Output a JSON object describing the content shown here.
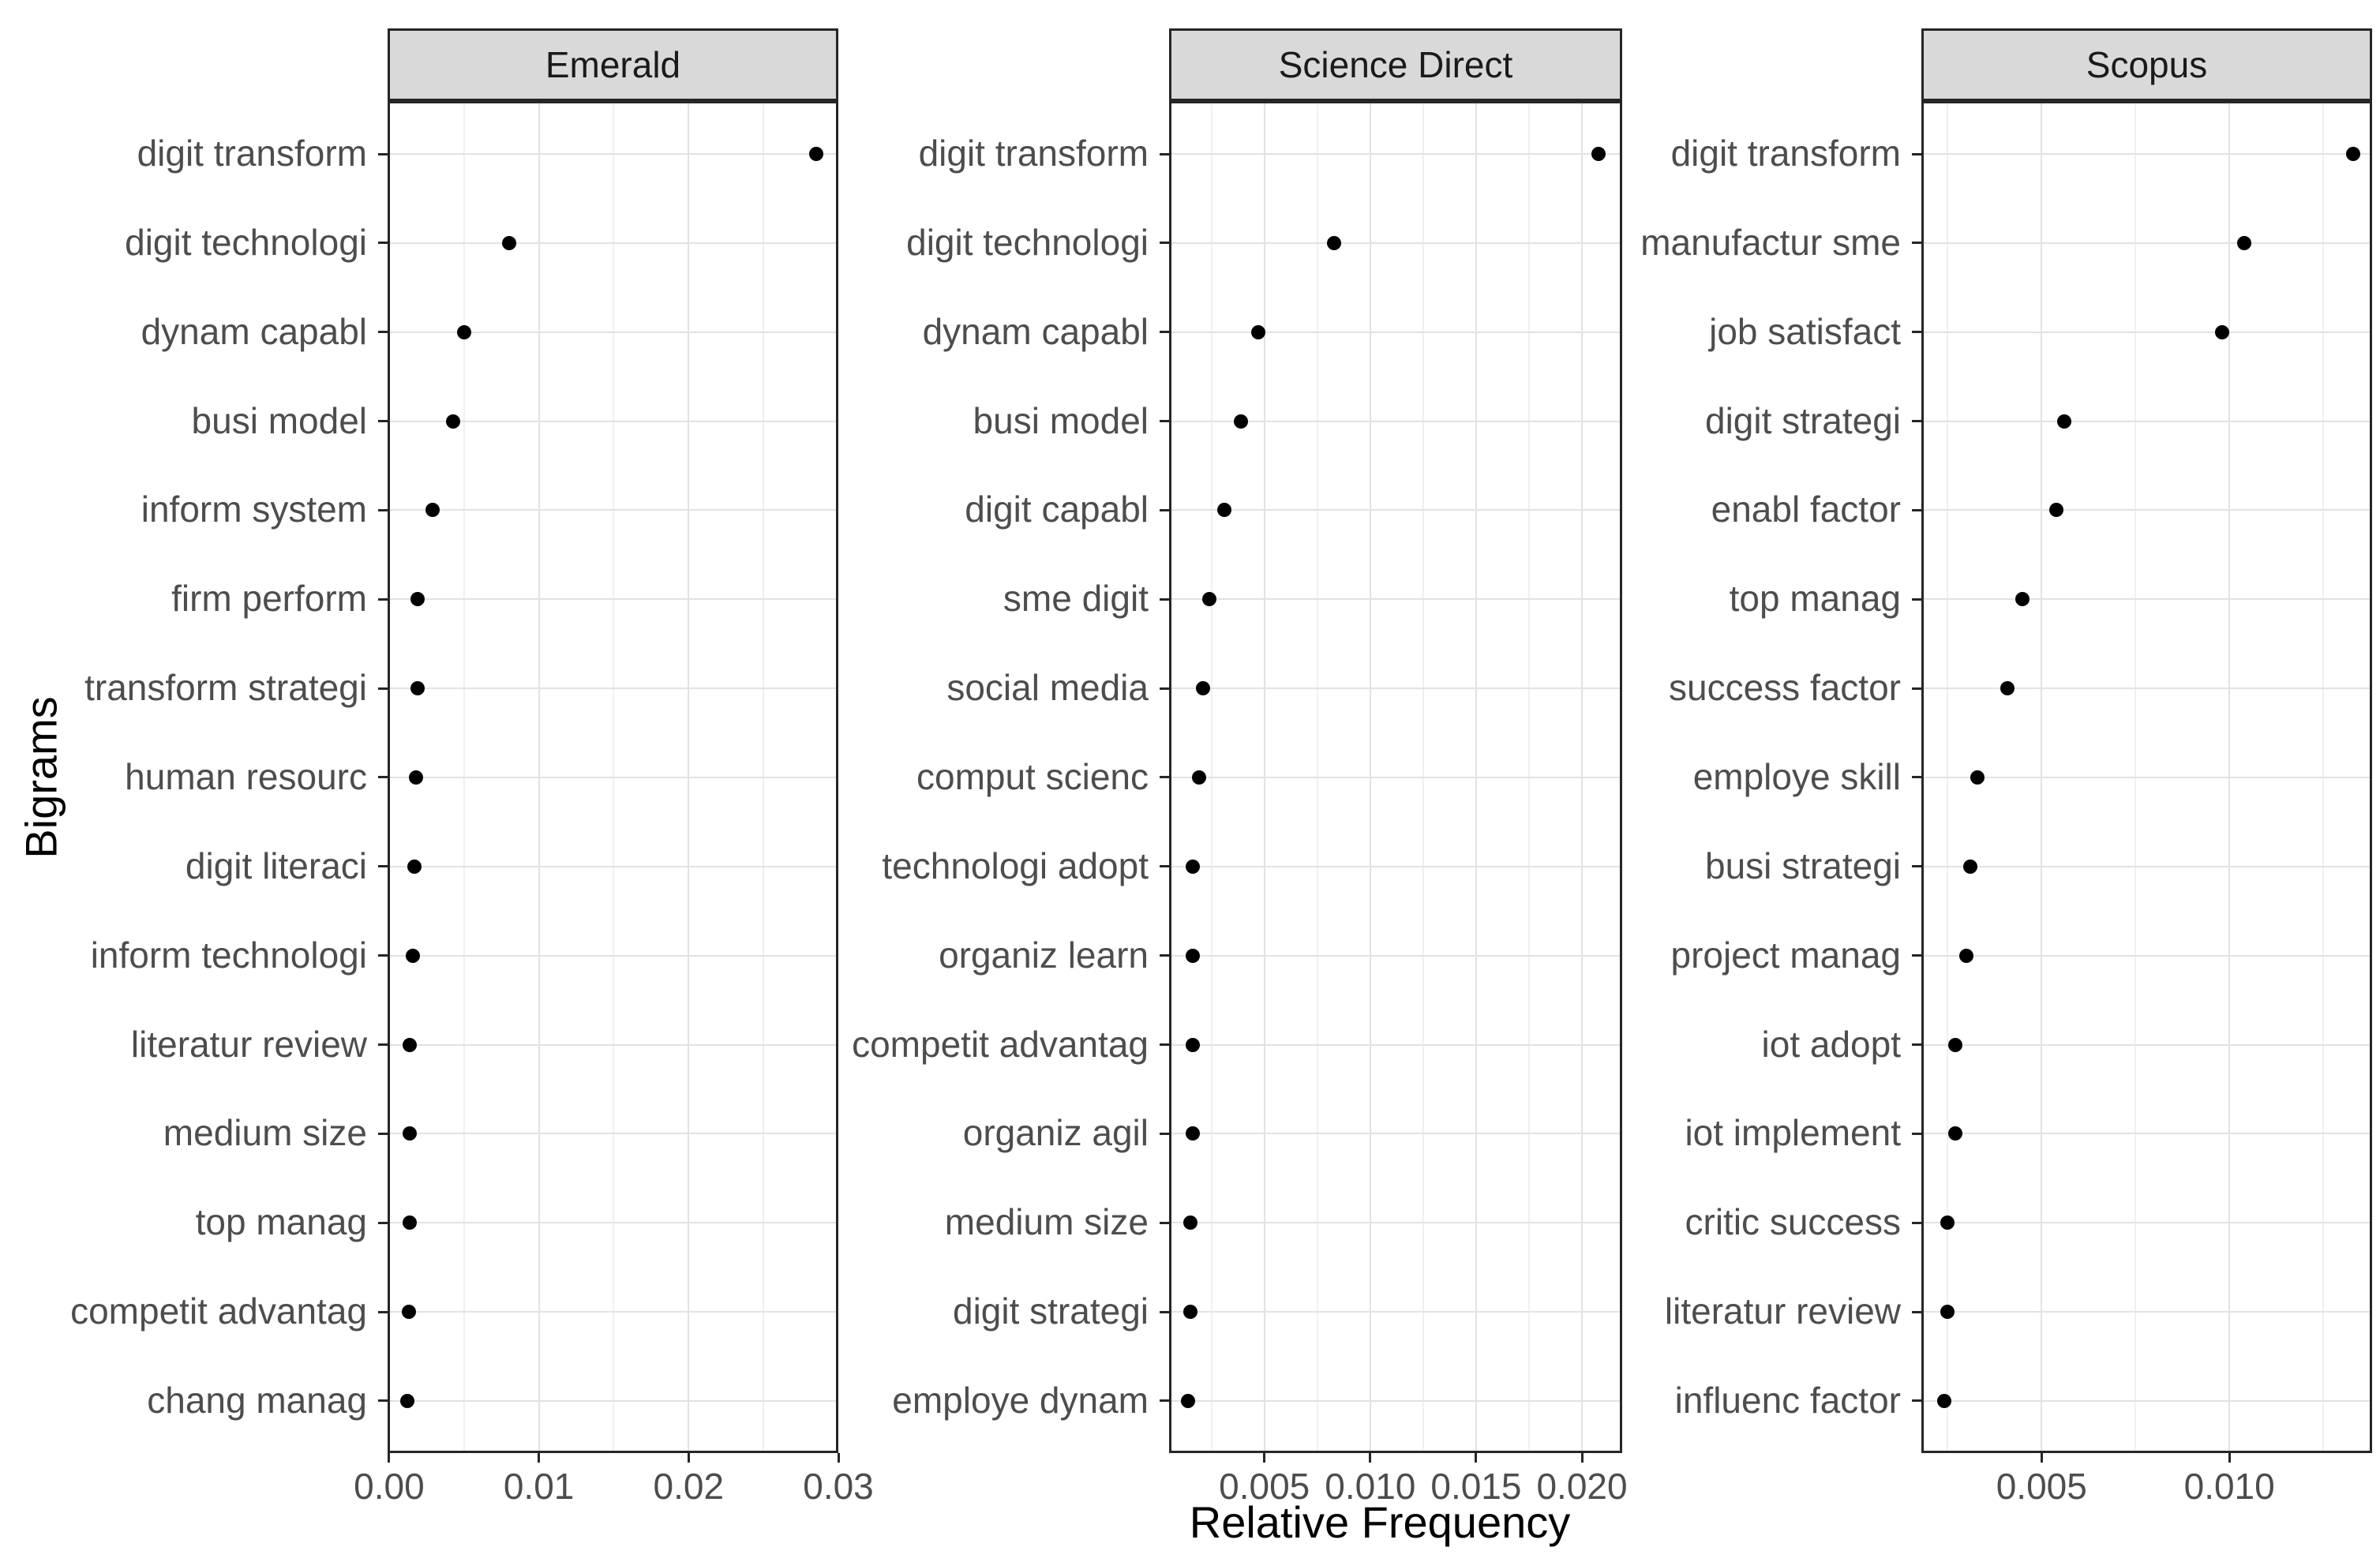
{
  "chart_data": {
    "type": "scatter",
    "subtype": "cleveland-dot-plot",
    "title": "",
    "xlabel": "Relative Frequency",
    "ylabel": "Bigrams",
    "grid": true,
    "legend": false,
    "point_color": "#000000",
    "strip_background": "#d9d9d9",
    "facets": [
      {
        "title": "Emerald",
        "xlim": [
          -0.0001,
          0.03
        ],
        "x_ticks": [
          {
            "label": "0.00",
            "value": 0.0
          },
          {
            "label": "0.01",
            "value": 0.01
          },
          {
            "label": "0.02",
            "value": 0.02
          },
          {
            "label": "0.03",
            "value": 0.03
          }
        ],
        "x_minor_gridlines": [
          0.005,
          0.015,
          0.025
        ],
        "categories": [
          "digit transform",
          "digit technologi",
          "dynam capabl",
          "busi model",
          "inform system",
          "firm perform",
          "transform strategi",
          "human resourc",
          "digit literaci",
          "inform technologi",
          "literatur review",
          "medium size",
          "top manag",
          "competit advantag",
          "chang manag"
        ],
        "values": [
          0.0285,
          0.008,
          0.005,
          0.0043,
          0.0029,
          0.0019,
          0.0019,
          0.0018,
          0.0017,
          0.0016,
          0.0014,
          0.0014,
          0.0014,
          0.0013,
          0.0012
        ]
      },
      {
        "title": "Science Direct",
        "xlim": [
          0.0005,
          0.0219
        ],
        "x_ticks": [
          {
            "label": "0.005",
            "value": 0.005
          },
          {
            "label": "0.010",
            "value": 0.01
          },
          {
            "label": "0.015",
            "value": 0.015
          },
          {
            "label": "0.020",
            "value": 0.02
          }
        ],
        "x_minor_gridlines": [
          0.0025,
          0.0075,
          0.0125,
          0.0175
        ],
        "categories": [
          "digit transform",
          "digit technologi",
          "dynam capabl",
          "busi model",
          "digit capabl",
          "sme digit",
          "social media",
          "comput scienc",
          "technologi adopt",
          "organiz learn",
          "competit advantag",
          "organiz agil",
          "medium size",
          "digit strategi",
          "employe dynam"
        ],
        "values": [
          0.0208,
          0.0083,
          0.0047,
          0.0039,
          0.0031,
          0.0024,
          0.0021,
          0.0019,
          0.0016,
          0.0016,
          0.0016,
          0.0016,
          0.0015,
          0.0015,
          0.0014
        ]
      },
      {
        "title": "Scopus",
        "xlim": [
          0.0018,
          0.0138
        ],
        "x_ticks": [
          {
            "label": "0.005",
            "value": 0.005
          },
          {
            "label": "0.010",
            "value": 0.01
          }
        ],
        "x_minor_gridlines": [
          0.0025,
          0.0075,
          0.0125
        ],
        "categories": [
          "digit transform",
          "manufactur sme",
          "job satisfact",
          "digit strategi",
          "enabl factor",
          "top manag",
          "success factor",
          "employe skill",
          "busi strategi",
          "project manag",
          "iot adopt",
          "iot implement",
          "critic success",
          "literatur review",
          "influenc factor"
        ],
        "values": [
          0.0133,
          0.0104,
          0.0098,
          0.0056,
          0.0054,
          0.0045,
          0.0041,
          0.0033,
          0.0031,
          0.003,
          0.0027,
          0.0027,
          0.0025,
          0.0025,
          0.0024
        ]
      }
    ]
  }
}
